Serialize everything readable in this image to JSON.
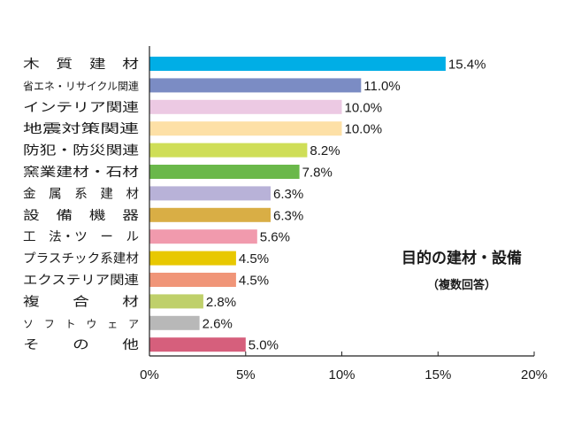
{
  "chart_data": {
    "type": "bar",
    "orientation": "horizontal",
    "title": "目的の建材・設備",
    "subtitle": "（複数回答）",
    "categories": [
      "木　質　建　材",
      "省エネ・リサイクル関連",
      "インテリア関連",
      "地震対策関連",
      "防犯・防災関連",
      "窯業建材・石材",
      "金　属　系　建　材",
      "設　備　機　器",
      "工　法・ツ　ー　ル",
      "プラスチック系建材",
      "エクステリア関連",
      "複　　合　　材",
      "ソ　フ　ト　ウ　ェ　ア",
      "そ　　の　　他"
    ],
    "values": [
      15.4,
      11.0,
      10.0,
      10.0,
      8.2,
      7.8,
      6.3,
      6.3,
      5.6,
      4.5,
      4.5,
      2.8,
      2.6,
      5.0
    ],
    "value_labels": [
      "15.4%",
      "11.0%",
      "10.0%",
      "10.0%",
      "8.2%",
      "7.8%",
      "6.3%",
      "6.3%",
      "5.6%",
      "4.5%",
      "4.5%",
      "2.8%",
      "2.6%",
      "5.0%"
    ],
    "colors": [
      "#00aee6",
      "#7b8cc4",
      "#ecc9e3",
      "#fde0a6",
      "#cfde57",
      "#6ab84a",
      "#b8b2d8",
      "#d9ae45",
      "#f19aad",
      "#e8c800",
      "#f09578",
      "#bfd06a",
      "#b8b8b8",
      "#d65f7c"
    ],
    "xlim": [
      0,
      20
    ],
    "xticks": [
      0,
      5,
      10,
      15,
      20
    ],
    "xtick_labels": [
      "0%",
      "5%",
      "10%",
      "15%",
      "20%"
    ],
    "grid": false,
    "legend": "none"
  }
}
